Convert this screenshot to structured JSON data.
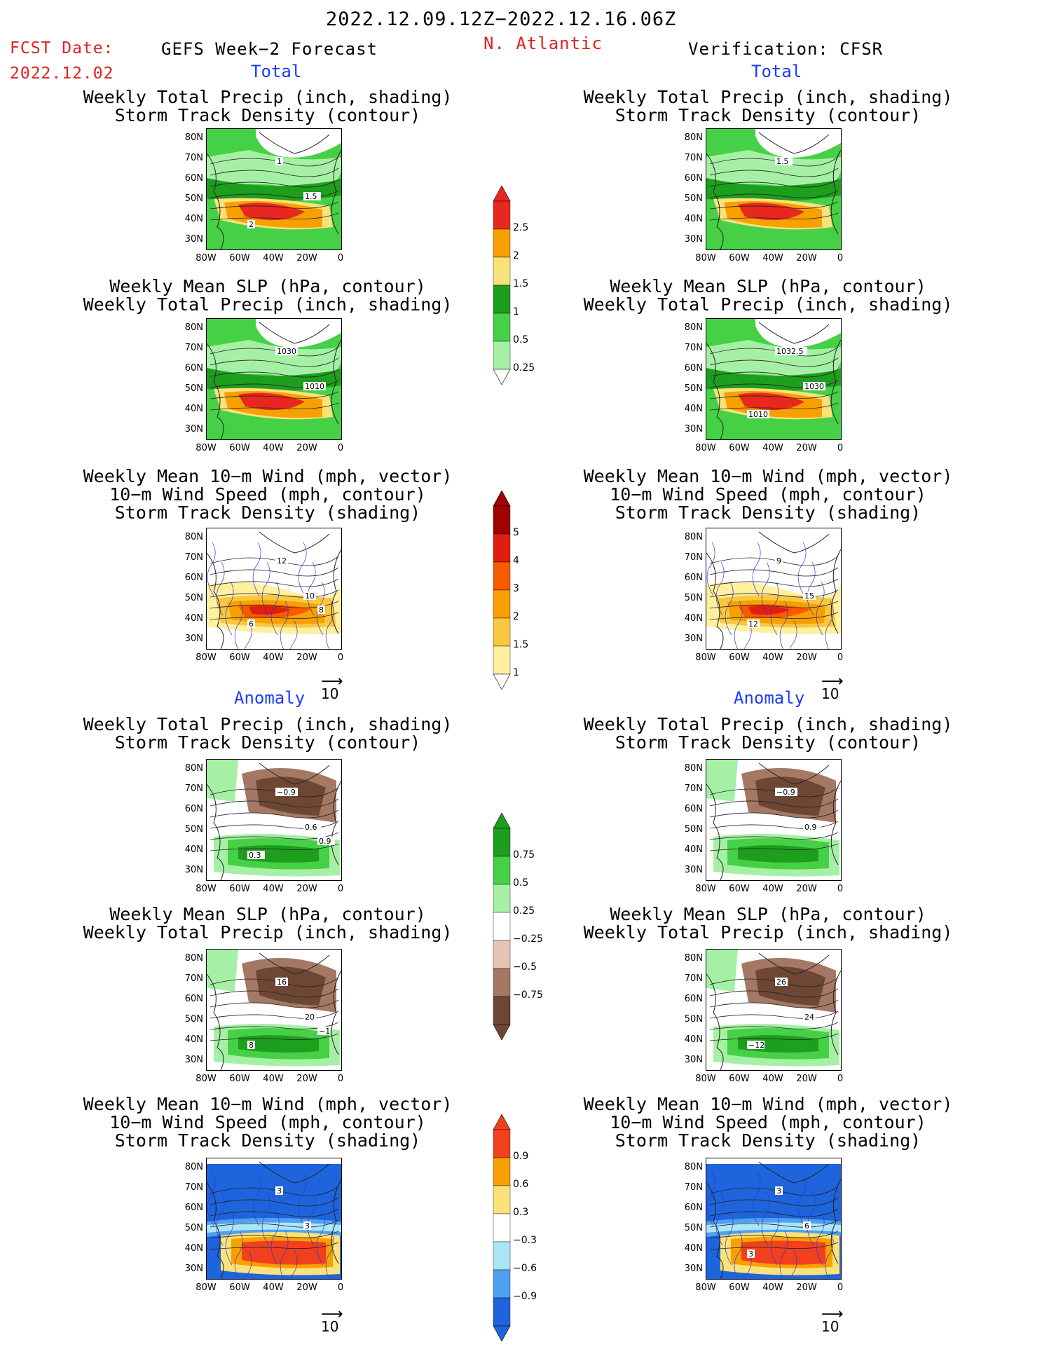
{
  "header": {
    "period": "2022.12.09.12Z−2022.12.16.06Z",
    "fcst_label": "FCST Date:",
    "fcst_date": "2022.12.02",
    "left_title": "GEFS Week−2 Forecast",
    "region": "N. Atlantic",
    "right_title": "Verification: CFSR"
  },
  "sections": {
    "total": "Total",
    "anomaly": "Anomaly"
  },
  "panel_titles": {
    "precip_storm": [
      "Weekly Total Precip (inch, shading)",
      "Storm Track Density (contour)"
    ],
    "slp_precip": [
      "Weekly Mean SLP (hPa, contour)",
      "Weekly Total Precip (inch, shading)"
    ],
    "wind_storm": [
      "Weekly Mean 10−m Wind (mph, vector)",
      "10−m Wind Speed (mph, contour)",
      "Storm Track Density (shading)"
    ]
  },
  "axes": {
    "lat": [
      "80N",
      "70N",
      "60N",
      "50N",
      "40N",
      "30N"
    ],
    "lon": [
      "80W",
      "60W",
      "40W",
      "20W",
      "0"
    ]
  },
  "vector_ref": "10",
  "colorbars": {
    "precip_total": {
      "labels": [
        "2.5",
        "2",
        "1.5",
        "1",
        "0.5",
        "0.25"
      ],
      "colors": [
        "#e8281e",
        "#f8a000",
        "#fae27a",
        "#1e9e1e",
        "#46d046",
        "#a6f0a6"
      ]
    },
    "storm_total": {
      "labels": [
        "5",
        "4",
        "3",
        "2",
        "1.5",
        "1"
      ],
      "colors": [
        "#a00000",
        "#e01e10",
        "#f85a00",
        "#f8a000",
        "#f8c840",
        "#fff0a0"
      ]
    },
    "precip_anom": {
      "labels": [
        "0.75",
        "0.5",
        "0.25",
        "−0.25",
        "−0.5",
        "−0.75"
      ],
      "colors": [
        "#1e9e1e",
        "#46d046",
        "#a6f0a6",
        "#ffffff",
        "#e8c4b4",
        "#a47864",
        "#6e4634"
      ]
    },
    "storm_anom": {
      "labels": [
        "0.9",
        "0.6",
        "0.3",
        "−0.3",
        "−0.6",
        "−0.9"
      ],
      "colors": [
        "#f0401e",
        "#f8a000",
        "#fae27a",
        "#ffffff",
        "#aae6f8",
        "#50a0f0",
        "#1e64dc"
      ]
    },
    "contour_labels": {
      "r1l": [
        "1",
        "1.5",
        "2"
      ],
      "r1r": [
        "1.5"
      ],
      "r2l": [
        "1030",
        "1010"
      ],
      "r2r": [
        "1032.5",
        "1030",
        "1010"
      ],
      "r3l": [
        "12",
        "10",
        "6",
        "8"
      ],
      "r3r": [
        "9",
        "15",
        "12"
      ],
      "r4l": [
        "−0.9",
        "0.6",
        "0.3",
        "0.9"
      ],
      "r4r": [
        "−0.9",
        "0.9"
      ],
      "r5l": [
        "16",
        "20",
        "8",
        "−1"
      ],
      "r5r": [
        "26",
        "24",
        "−12"
      ],
      "r6l": [
        "3",
        "3"
      ],
      "r6r": [
        "3",
        "6",
        "3"
      ]
    }
  }
}
